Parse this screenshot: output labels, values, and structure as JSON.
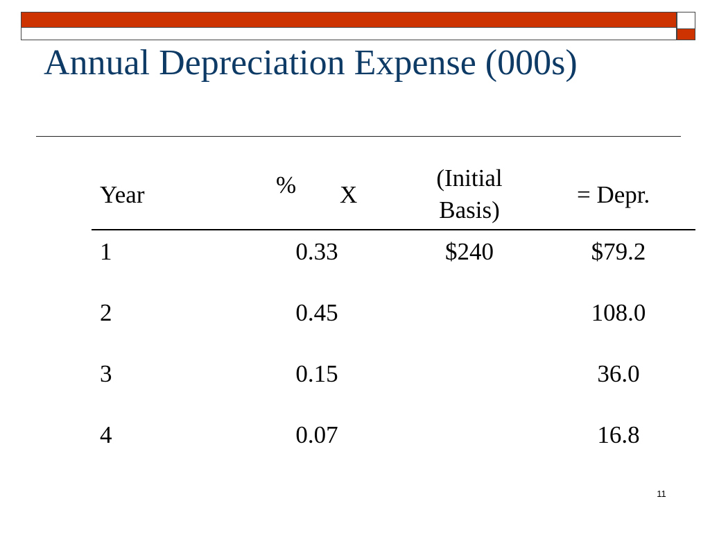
{
  "slide": {
    "title": "Annual Depreciation Expense (000s)",
    "page_number": "11",
    "colors": {
      "title": "#0e3a66",
      "accent_bar": "#cc3300"
    }
  },
  "table": {
    "headers": {
      "year": "Year",
      "percent": "%",
      "times": "X",
      "basis": "(Initial Basis)",
      "depreciation": "= Depr."
    },
    "rows": [
      {
        "year": "1",
        "percent": "0.33",
        "basis": "$240",
        "depreciation": "$79.2"
      },
      {
        "year": "2",
        "percent": "0.45",
        "basis": "",
        "depreciation": "108.0"
      },
      {
        "year": "3",
        "percent": "0.15",
        "basis": "",
        "depreciation": "36.0"
      },
      {
        "year": "4",
        "percent": "0.07",
        "basis": "",
        "depreciation": "16.8"
      }
    ]
  }
}
